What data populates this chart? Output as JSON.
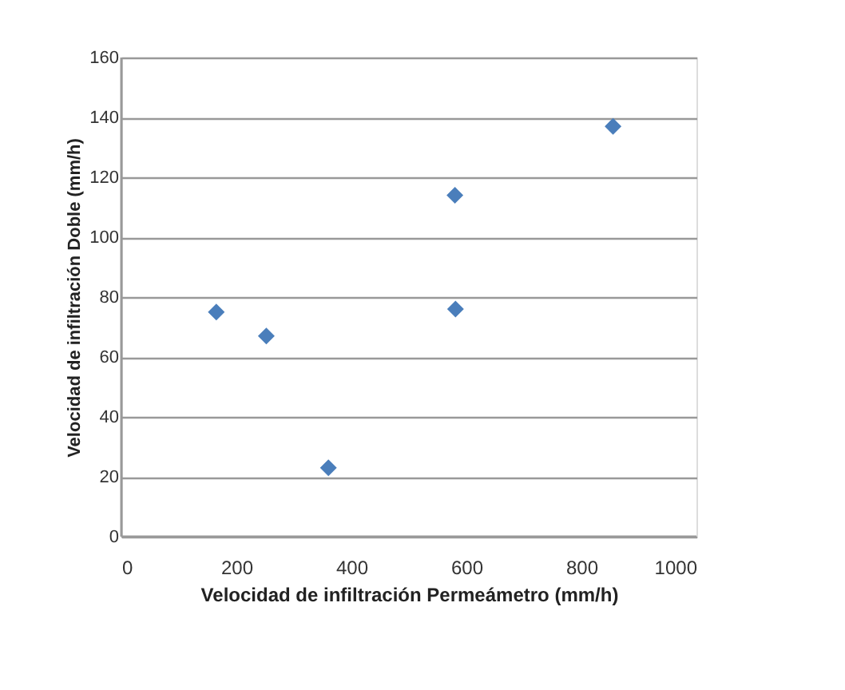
{
  "chart_data": {
    "type": "scatter",
    "xlabel": "Velocidad de infiltración Permeámetro (mm/h)",
    "ylabel": "Velocidad de infiltración Doble (mm/h)",
    "x": [
      165,
      252,
      360,
      580,
      581,
      855
    ],
    "series": [
      {
        "color": "#4a7ebb",
        "values": [
          75,
          67,
          23,
          114,
          76,
          137
        ]
      }
    ],
    "xlim": [
      0,
      1000
    ],
    "xticks": [
      0,
      200,
      400,
      600,
      800,
      1000
    ],
    "ylim": [
      0,
      160
    ],
    "yticks": [
      0,
      20,
      40,
      60,
      80,
      100,
      120,
      140,
      160
    ],
    "grid": "y",
    "marker": "diamond"
  }
}
